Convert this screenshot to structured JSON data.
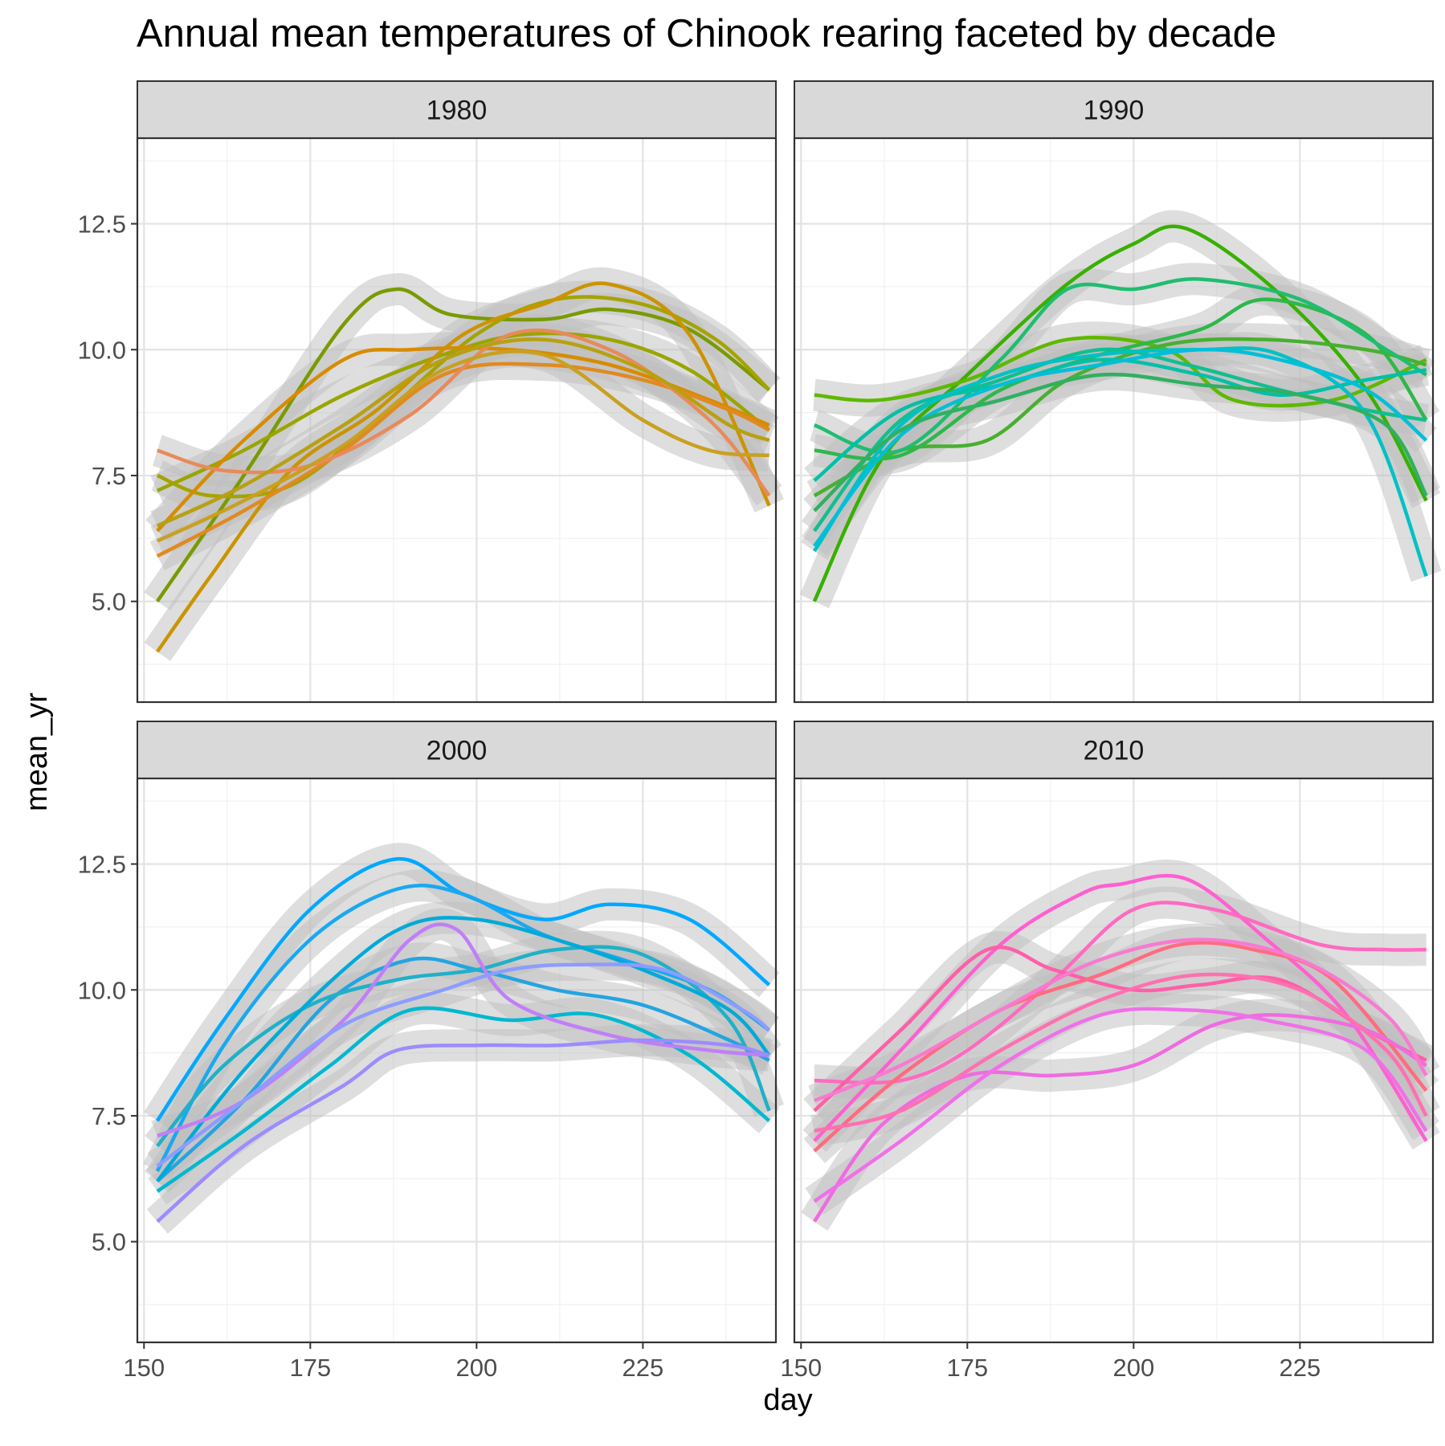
{
  "title": "Annual mean temperatures of Chinook rearing faceted by decade",
  "ylabel": "mean_yr",
  "xlabel": "day",
  "chart_data": {
    "type": "line",
    "title": "Annual mean temperatures of Chinook rearing faceted by decade",
    "xlabel": "day",
    "ylabel": "mean_yr",
    "xlim": [
      149,
      245
    ],
    "ylim": [
      3.0,
      14.2
    ],
    "x_ticks": [
      "150",
      "175",
      "200",
      "225"
    ],
    "y_ticks": [
      "5.0",
      "7.5",
      "10.0",
      "12.5"
    ],
    "x_tick_values": [
      150,
      175,
      200,
      225
    ],
    "y_tick_values": [
      5.0,
      7.5,
      10.0,
      12.5
    ],
    "grid": true,
    "legend": "none",
    "band_color": "#bdbdbd",
    "facets": [
      {
        "label": "1980",
        "series": [
          {
            "color": "#7a9a01",
            "x": [
              152,
              165,
              180,
              188,
              196,
              210,
              220,
              232,
              244
            ],
            "y": [
              5.0,
              7.5,
              10.5,
              11.2,
              10.7,
              10.6,
              10.8,
              10.4,
              9.2
            ]
          },
          {
            "color": "#9aa500",
            "x": [
              152,
              165,
              180,
              195,
              207,
              220,
              232,
              244
            ],
            "y": [
              7.2,
              8.0,
              9.1,
              9.9,
              10.3,
              10.2,
              9.6,
              8.4
            ]
          },
          {
            "color": "#a5a300",
            "x": [
              152,
              160,
              172,
              185,
              200,
              212,
              225,
              236,
              244
            ],
            "y": [
              7.5,
              7.1,
              7.3,
              8.6,
              10.3,
              11.0,
              10.9,
              10.2,
              9.2
            ]
          },
          {
            "color": "#cc9300",
            "x": [
              152,
              160,
              172,
              185,
              198,
              210,
              220,
              232,
              244
            ],
            "y": [
              4.0,
              5.5,
              7.6,
              8.8,
              10.3,
              10.9,
              11.3,
              10.3,
              6.9
            ]
          },
          {
            "color": "#d88b00",
            "x": [
              152,
              165,
              180,
              190,
              205,
              220,
              235,
              244
            ],
            "y": [
              6.4,
              8.2,
              9.8,
              10.0,
              10.0,
              9.7,
              9.0,
              8.5
            ]
          },
          {
            "color": "#e08a20",
            "x": [
              152,
              165,
              180,
              195,
              210,
              225,
              238,
              244
            ],
            "y": [
              5.9,
              6.8,
              8.0,
              9.5,
              9.7,
              9.4,
              8.8,
              8.4
            ]
          },
          {
            "color": "#e88a5a",
            "x": [
              152,
              162,
              175,
              190,
              205,
              220,
              235,
              244
            ],
            "y": [
              8.0,
              7.6,
              7.7,
              8.7,
              10.3,
              10.0,
              8.6,
              7.1
            ]
          },
          {
            "color": "#c9a020",
            "x": [
              152,
              165,
              180,
              195,
              210,
              225,
              235,
              244
            ],
            "y": [
              6.2,
              7.0,
              8.1,
              9.6,
              9.9,
              8.6,
              8.0,
              7.9
            ]
          },
          {
            "color": "#b8a010",
            "x": [
              152,
              165,
              180,
              195,
              210,
              225,
              238,
              244
            ],
            "y": [
              6.5,
              7.3,
              8.5,
              9.8,
              10.2,
              9.6,
              8.5,
              8.2
            ]
          }
        ]
      },
      {
        "label": "1990",
        "series": [
          {
            "color": "#39b000",
            "x": [
              152,
              162,
              175,
              190,
              200,
              208,
              222,
              235,
              244
            ],
            "y": [
              5.0,
              7.8,
              9.5,
              11.3,
              12.1,
              12.4,
              11.1,
              9.2,
              7.0
            ]
          },
          {
            "color": "#5fb800",
            "x": [
              152,
              162,
              175,
              190,
              205,
              215,
              230,
              244
            ],
            "y": [
              9.1,
              9.0,
              9.4,
              10.2,
              10.0,
              9.0,
              9.0,
              9.8
            ]
          },
          {
            "color": "#48b030",
            "x": [
              152,
              165,
              178,
              190,
              205,
              220,
              235,
              244
            ],
            "y": [
              7.1,
              8.0,
              8.2,
              9.4,
              10.1,
              10.2,
              10.0,
              9.7
            ]
          },
          {
            "color": "#2eb84a",
            "x": [
              152,
              165,
              180,
              195,
              210,
              220,
              235,
              244
            ],
            "y": [
              8.0,
              7.9,
              9.2,
              9.9,
              10.4,
              11.0,
              10.3,
              8.6
            ]
          },
          {
            "color": "#1fbd70",
            "x": [
              152,
              165,
              180,
              190,
              200,
              210,
              225,
              238,
              244
            ],
            "y": [
              8.5,
              8.0,
              9.8,
              11.2,
              11.2,
              11.4,
              11.0,
              10.0,
              9.5
            ]
          },
          {
            "color": "#10bf90",
            "x": [
              152,
              165,
              180,
              195,
              208,
              222,
              235,
              244
            ],
            "y": [
              6.4,
              8.6,
              9.4,
              10.0,
              9.7,
              9.2,
              8.8,
              8.6
            ]
          },
          {
            "color": "#00c0a8",
            "x": [
              152,
              165,
              180,
              195,
              210,
              222,
              235,
              244
            ],
            "y": [
              7.4,
              8.8,
              9.3,
              9.8,
              9.5,
              9.1,
              9.4,
              9.6
            ]
          },
          {
            "color": "#00c1c4",
            "x": [
              152,
              165,
              180,
              195,
              210,
              222,
              235,
              244
            ],
            "y": [
              6.0,
              8.5,
              9.5,
              9.9,
              10.0,
              9.9,
              8.7,
              5.5
            ]
          },
          {
            "color": "#00bfd8",
            "x": [
              152,
              165,
              180,
              195,
              210,
              222,
              235,
              244
            ],
            "y": [
              6.1,
              8.3,
              9.3,
              9.7,
              10.0,
              9.8,
              9.2,
              8.2
            ]
          },
          {
            "color": "#30b060",
            "x": [
              152,
              165,
              180,
              195,
              210,
              225,
              238,
              244
            ],
            "y": [
              6.8,
              8.4,
              9.0,
              9.5,
              9.3,
              9.1,
              8.5,
              7.1
            ]
          }
        ]
      },
      {
        "label": "2000",
        "series": [
          {
            "color": "#00a8ff",
            "x": [
              152,
              162,
              175,
              188,
              198,
              210,
              220,
              232,
              244
            ],
            "y": [
              7.4,
              9.4,
              11.6,
              12.6,
              11.9,
              11.4,
              11.7,
              11.4,
              10.1
            ]
          },
          {
            "color": "#1aa8f0",
            "x": [
              152,
              162,
              175,
              188,
              198,
              210,
              222,
              235,
              244
            ],
            "y": [
              6.4,
              8.9,
              11.0,
              12.0,
              11.9,
              11.1,
              10.6,
              10.0,
              9.2
            ]
          },
          {
            "color": "#24a4e0",
            "x": [
              152,
              165,
              178,
              190,
              200,
              212,
              225,
              238,
              244
            ],
            "y": [
              6.2,
              7.8,
              9.8,
              10.6,
              10.4,
              10.0,
              9.7,
              9.0,
              8.6
            ]
          },
          {
            "color": "#20b0c8",
            "x": [
              152,
              162,
              175,
              188,
              200,
              212,
              225,
              238,
              244
            ],
            "y": [
              6.9,
              8.5,
              9.7,
              10.2,
              10.4,
              10.8,
              10.7,
              9.4,
              7.6
            ]
          },
          {
            "color": "#00b8d0",
            "x": [
              152,
              165,
              178,
              190,
              205,
              218,
              232,
              244
            ],
            "y": [
              6.0,
              7.2,
              8.5,
              9.6,
              9.4,
              9.5,
              8.7,
              7.4
            ]
          },
          {
            "color": "#00aad8",
            "x": [
              152,
              165,
              180,
              190,
              200,
              212,
              225,
              238,
              244
            ],
            "y": [
              6.2,
              8.4,
              10.4,
              11.3,
              11.4,
              11.0,
              10.4,
              9.6,
              8.7
            ]
          },
          {
            "color": "#c07ff6",
            "x": [
              152,
              165,
              180,
              190,
              197,
              205,
              220,
              235,
              244
            ],
            "y": [
              7.1,
              7.8,
              9.4,
              11.0,
              11.2,
              9.8,
              9.1,
              8.8,
              8.7
            ]
          },
          {
            "color": "#9b8cff",
            "x": [
              152,
              165,
              180,
              188,
              200,
              212,
              225,
              238,
              244
            ],
            "y": [
              5.4,
              6.9,
              8.1,
              8.8,
              8.9,
              8.9,
              9.0,
              8.9,
              8.7
            ]
          },
          {
            "color": "#8c9cff",
            "x": [
              152,
              165,
              180,
              195,
              205,
              215,
              228,
              240,
              244
            ],
            "y": [
              6.5,
              7.8,
              9.3,
              10.0,
              10.4,
              10.5,
              10.4,
              9.6,
              9.2
            ]
          }
        ]
      },
      {
        "label": "2010",
        "series": [
          {
            "color": "#ff5fd0",
            "x": [
              152,
              165,
              180,
              192,
              198,
              208,
              220,
              232,
              244
            ],
            "y": [
              7.0,
              8.8,
              10.9,
              11.9,
              12.1,
              12.2,
              11.0,
              9.5,
              7.0
            ]
          },
          {
            "color": "#ff6ac0",
            "x": [
              152,
              165,
              175,
              188,
              200,
              212,
              228,
              238,
              244
            ],
            "y": [
              8.2,
              8.2,
              8.8,
              10.2,
              11.6,
              11.6,
              10.9,
              10.8,
              10.8
            ]
          },
          {
            "color": "#ff5fa8",
            "x": [
              152,
              165,
              178,
              188,
              200,
              210,
              222,
              235,
              244
            ],
            "y": [
              7.6,
              9.2,
              10.8,
              10.4,
              10.0,
              10.1,
              10.2,
              9.2,
              8.6
            ]
          },
          {
            "color": "#ff6b80",
            "x": [
              152,
              165,
              180,
              195,
              207,
              218,
              230,
              244
            ],
            "y": [
              6.8,
              8.3,
              9.6,
              10.3,
              10.9,
              10.8,
              10.2,
              8.0
            ]
          },
          {
            "color": "#ef6be0",
            "x": [
              152,
              162,
              175,
              188,
              200,
              212,
              222,
              235,
              244
            ],
            "y": [
              5.4,
              7.3,
              8.3,
              8.3,
              8.5,
              9.3,
              9.5,
              9.2,
              8.5
            ]
          },
          {
            "color": "#f070e8",
            "x": [
              152,
              165,
              180,
              195,
              208,
              220,
              235,
              244
            ],
            "y": [
              5.8,
              7.0,
              8.5,
              9.5,
              9.6,
              9.4,
              8.8,
              7.2
            ]
          },
          {
            "color": "#ff70b0",
            "x": [
              152,
              165,
              180,
              195,
              210,
              225,
              238,
              244
            ],
            "y": [
              7.2,
              7.6,
              8.8,
              9.8,
              10.3,
              10.0,
              8.8,
              7.5
            ]
          },
          {
            "color": "#f87ad0",
            "x": [
              152,
              165,
              180,
              195,
              210,
              225,
              238,
              244
            ],
            "y": [
              7.8,
              8.5,
              9.6,
              10.6,
              11.0,
              10.6,
              9.5,
              8.3
            ]
          }
        ]
      }
    ]
  }
}
